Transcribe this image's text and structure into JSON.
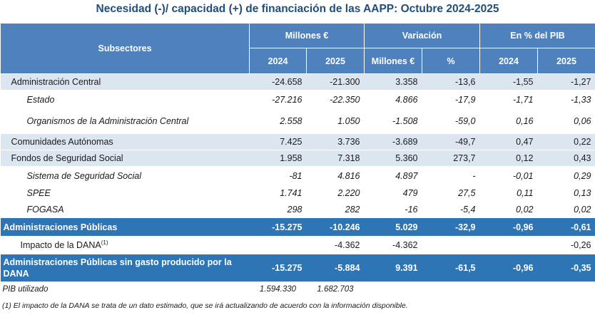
{
  "title": "Necesidad (-)/ capacidad (+) de financiación de las AAPP:  Octubre 2024-2025",
  "header": {
    "subsectores": "Subsectores",
    "millones": "Millones €",
    "variacion": "Variación",
    "pct_pib": "En % del PIB",
    "y2024": "2024",
    "y2025": "2025",
    "var_millones": "Millones €",
    "var_pct": "%",
    "pib2024": "2024",
    "pib2025": "2025"
  },
  "rows": {
    "admin_central": {
      "label": "Administración Central",
      "v2024": "-24.658",
      "v2025": "-21.300",
      "var": "3.358",
      "pct": "-13,6",
      "p2024": "-1,55",
      "p2025": "-1,27"
    },
    "estado": {
      "label": "Estado",
      "v2024": "-27.216",
      "v2025": "-22.350",
      "var": "4.866",
      "pct": "-17,9",
      "p2024": "-1,71",
      "p2025": "-1,33"
    },
    "organismos": {
      "label": "Organismos de la Administración Central",
      "v2024": "2.558",
      "v2025": "1.050",
      "var": "-1.508",
      "pct": "-59,0",
      "p2024": "0,16",
      "p2025": "0,06"
    },
    "ccaa": {
      "label": "Comunidades Autónomas",
      "v2024": "7.425",
      "v2025": "3.736",
      "var": "-3.689",
      "pct": "-49,7",
      "p2024": "0,47",
      "p2025": "0,22"
    },
    "fss": {
      "label": "Fondos de Seguridad Social",
      "v2024": "1.958",
      "v2025": "7.318",
      "var": "5.360",
      "pct": "273,7",
      "p2024": "0,12",
      "p2025": "0,43"
    },
    "sss": {
      "label": "Sistema de Seguridad Social",
      "v2024": "-81",
      "v2025": "4.816",
      "var": "4.897",
      "pct": "-",
      "p2024": "-0,01",
      "p2025": "0,29"
    },
    "spee": {
      "label": "SPEE",
      "v2024": "1.741",
      "v2025": "2.220",
      "var": "479",
      "pct": "27,5",
      "p2024": "0,11",
      "p2025": "0,13"
    },
    "fogasa": {
      "label": "FOGASA",
      "v2024": "298",
      "v2025": "282",
      "var": "-16",
      "pct": "-5,4",
      "p2024": "0,02",
      "p2025": "0,02"
    },
    "aapp": {
      "label": "Administraciones Públicas",
      "v2024": "-15.275",
      "v2025": "-10.246",
      "var": "5.029",
      "pct": "-32,9",
      "p2024": "-0,96",
      "p2025": "-0,61"
    },
    "dana": {
      "label": "Impacto de la DANA",
      "sup": "(1)",
      "v2024": "",
      "v2025": "-4.362",
      "var": "-4.362",
      "pct": "",
      "p2024": "",
      "p2025": "-0,26"
    },
    "aapp_sin_dana": {
      "label": "Administraciones Públicas sin gasto producido por la DANA",
      "v2024": "-15.275",
      "v2025": "-5.884",
      "var": "9.391",
      "pct": "-61,5",
      "p2024": "-0,96",
      "p2025": "-0,35"
    }
  },
  "pib": {
    "label": "PIB utilizado",
    "v2024": "1.594.330",
    "v2025": "1.682.703"
  },
  "note": "(1) El impacto de la DANA se trata de un dato estimado, que se irá actualizando de acuerdo con la información disponible."
}
